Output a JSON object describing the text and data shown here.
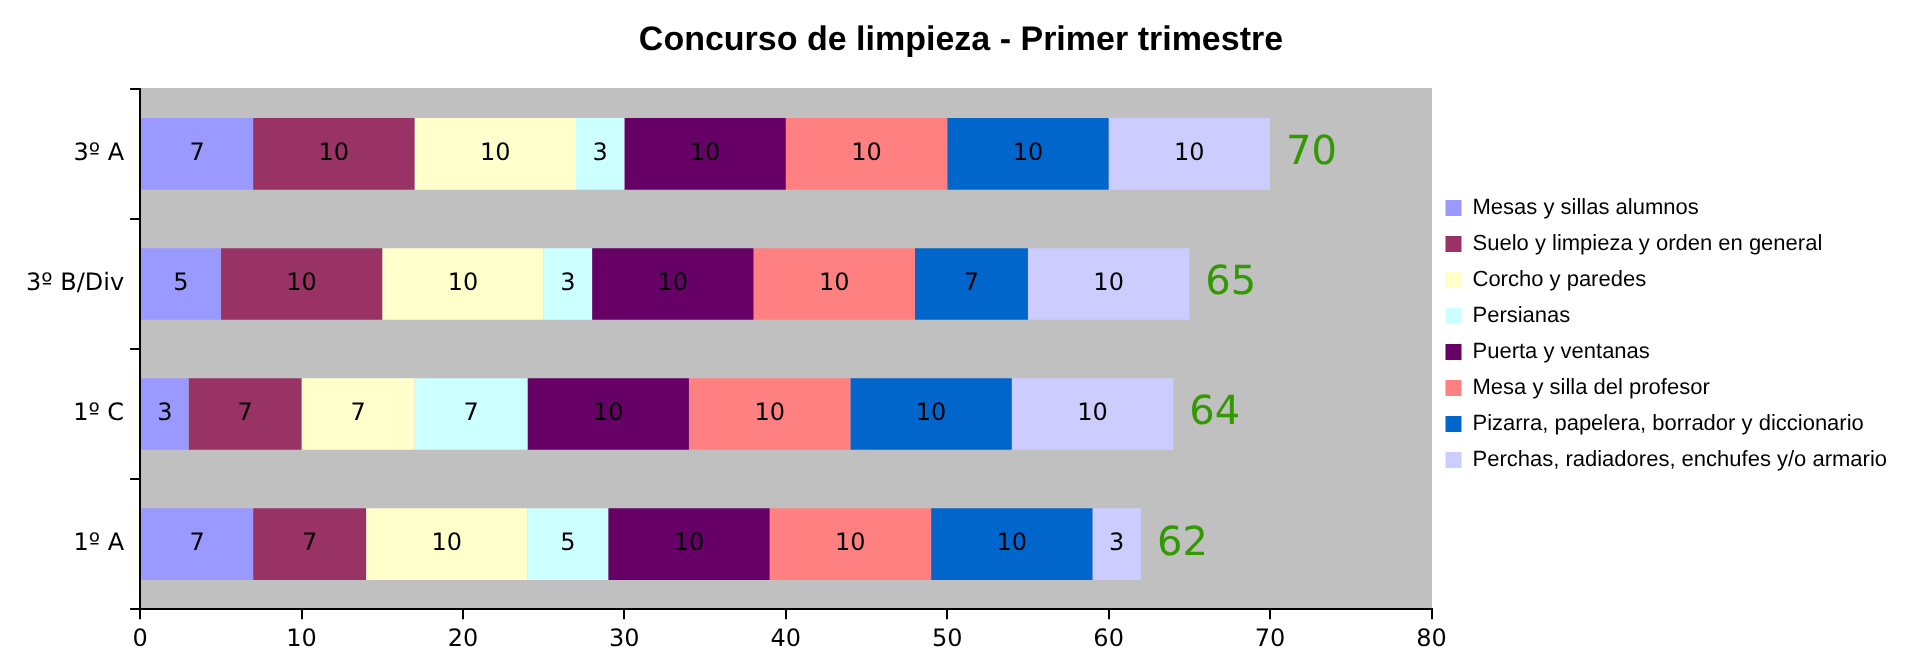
{
  "chart_data": {
    "type": "bar",
    "title": "Concurso de limpieza - Primer trimestre",
    "orientation": "horizontal",
    "stacked": true,
    "categories": [
      "3º A",
      "3º B/Div",
      "1º C",
      "1º A"
    ],
    "series": [
      {
        "name": "Mesas y sillas alumnos",
        "color": "#9999ff",
        "values": [
          7,
          5,
          3,
          7
        ]
      },
      {
        "name": "Suelo y limpieza y orden en general",
        "color": "#993366",
        "values": [
          10,
          10,
          7,
          7
        ]
      },
      {
        "name": "Corcho y paredes",
        "color": "#ffffcc",
        "values": [
          10,
          10,
          7,
          10
        ]
      },
      {
        "name": "Persianas",
        "color": "#ccffff",
        "values": [
          3,
          3,
          7,
          5
        ]
      },
      {
        "name": "Puerta y ventanas",
        "color": "#660066",
        "values": [
          10,
          10,
          10,
          10
        ]
      },
      {
        "name": "Mesa y silla del profesor",
        "color": "#ff8080",
        "values": [
          10,
          10,
          10,
          10
        ]
      },
      {
        "name": "Pizarra, papelera, borrador y diccionario",
        "color": "#0066cc",
        "values": [
          10,
          7,
          10,
          10
        ]
      },
      {
        "name": "Perchas, radiadores, enchufes y/o armario",
        "color": "#ccccff",
        "values": [
          10,
          10,
          10,
          3
        ]
      }
    ],
    "xlim": [
      0,
      80
    ],
    "xticks": [
      0,
      10,
      20,
      30,
      40,
      50,
      60,
      70,
      80
    ],
    "data_labels": true,
    "totals": [
      "70",
      "65",
      "64",
      "62"
    ],
    "legend": "right",
    "grid": false
  }
}
